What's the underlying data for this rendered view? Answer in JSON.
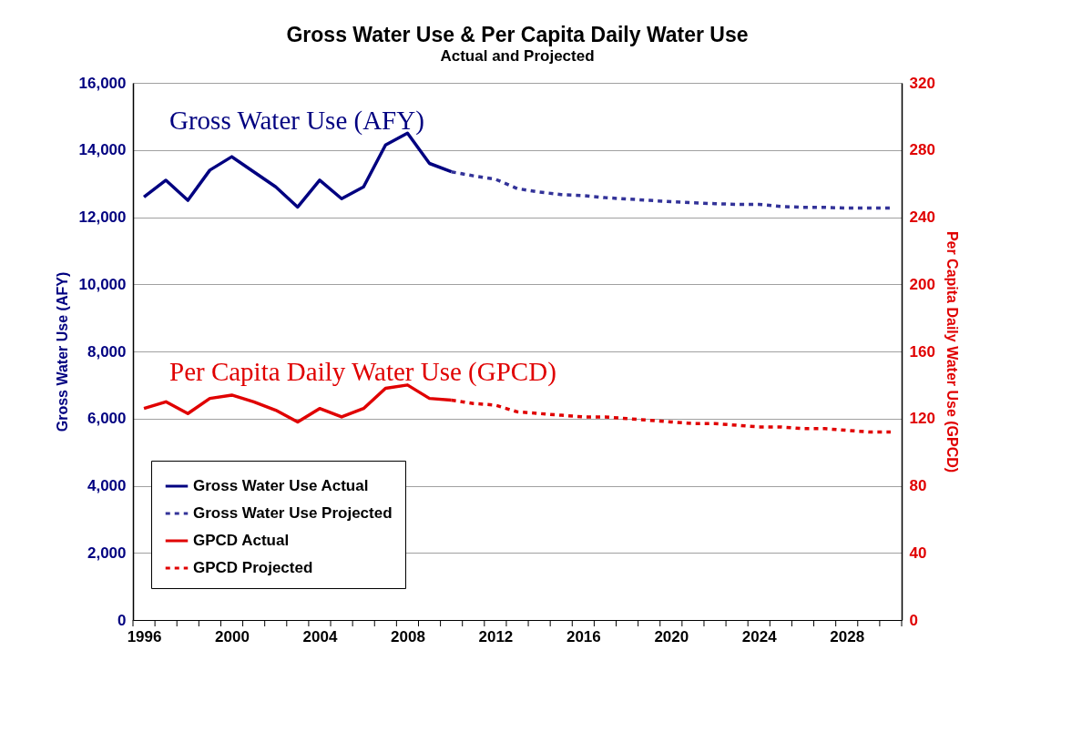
{
  "chart_data": {
    "type": "line",
    "title": "Gross Water Use & Per Capita Daily Water Use",
    "subtitle": "Actual and Projected",
    "ylabel": "Gross Water Use (AFY)",
    "y2label": "Per Capita Daily Water Use (GPCD)",
    "annotations": [
      "Gross Water Use (AFY)",
      "Per Capita Daily Water Use (GPCD)"
    ],
    "xlim": [
      1995.5,
      2030.5
    ],
    "xticks": [
      1996,
      2000,
      2004,
      2008,
      2012,
      2016,
      2020,
      2024,
      2028,
      {
        "value": 1995.5,
        "label": null
      },
      {
        "value": 1996.5,
        "label": null
      },
      {
        "value": 1997.5,
        "label": null
      },
      {
        "value": 1998.5,
        "label": null
      },
      {
        "value": 1999.5,
        "label": null
      },
      {
        "value": 2000.5,
        "label": null
      },
      {
        "value": 2001.5,
        "label": null
      },
      {
        "value": 2002.5,
        "label": null
      },
      {
        "value": 2003.5,
        "label": null
      },
      {
        "value": 2004.5,
        "label": null
      },
      {
        "value": 2005.5,
        "label": null
      },
      {
        "value": 2006.5,
        "label": null
      },
      {
        "value": 2007.5,
        "label": null
      },
      {
        "value": 2008.5,
        "label": null
      },
      {
        "value": 2009.5,
        "label": null
      },
      {
        "value": 2010.5,
        "label": null
      },
      {
        "value": 2011.5,
        "label": null
      },
      {
        "value": 2012.5,
        "label": null
      },
      {
        "value": 2013.5,
        "label": null
      },
      {
        "value": 2014.5,
        "label": null
      },
      {
        "value": 2015.5,
        "label": null
      },
      {
        "value": 2016.5,
        "label": null
      },
      {
        "value": 2017.5,
        "label": null
      },
      {
        "value": 2018.5,
        "label": null
      },
      {
        "value": 2019.5,
        "label": null
      },
      {
        "value": 2020.5,
        "label": null
      },
      {
        "value": 2021.5,
        "label": null
      },
      {
        "value": 2022.5,
        "label": null
      },
      {
        "value": 2023.5,
        "label": null
      },
      {
        "value": 2024.5,
        "label": null
      },
      {
        "value": 2025.5,
        "label": null
      },
      {
        "value": 2026.5,
        "label": null
      },
      {
        "value": 2027.5,
        "label": null
      },
      {
        "value": 2028.5,
        "label": null
      },
      {
        "value": 2029.5,
        "label": null
      },
      {
        "value": 2030.5,
        "label": null
      }
    ],
    "ylim": [
      0,
      16000
    ],
    "yticks": [
      0,
      {
        "value": 2000,
        "label": "2,000"
      },
      {
        "value": 4000,
        "label": "4,000"
      },
      {
        "value": 6000,
        "label": "6,000"
      },
      {
        "value": 8000,
        "label": "8,000"
      },
      {
        "value": 10000,
        "label": "10,000"
      },
      {
        "value": 12000,
        "label": "12,000"
      },
      {
        "value": 14000,
        "label": "14,000"
      },
      {
        "value": 16000,
        "label": "16,000"
      }
    ],
    "y2lim": [
      0,
      320
    ],
    "y2ticks": [
      0,
      40,
      80,
      120,
      160,
      200,
      240,
      280,
      320
    ],
    "grid": "y",
    "legend": "bottom left",
    "marker": "none",
    "series": [
      {
        "name": "Gross Water Use Actual",
        "color": "#000080",
        "line_style": "solid",
        "x": [
          1996,
          1997,
          1998,
          1999,
          2000,
          2001,
          2002,
          2003,
          2004,
          2005,
          2006,
          2007,
          2008,
          2009,
          2010
        ],
        "values": [
          12600,
          13100,
          12500,
          13400,
          13800,
          13350,
          12900,
          12300,
          13100,
          12550,
          12900,
          14150,
          14500,
          13600,
          13350
        ]
      },
      {
        "name": "Gross Water Use Projected",
        "color": "#333399",
        "line_style": "dashed",
        "x": [
          2010,
          2011,
          2012,
          2013,
          2014,
          2015,
          2016,
          2017,
          2018,
          2019,
          2020,
          2021,
          2022,
          2023,
          2024,
          2025,
          2026,
          2027,
          2028,
          2029,
          2030
        ],
        "values": [
          13350,
          13230,
          13130,
          12850,
          12750,
          12670,
          12640,
          12580,
          12540,
          12500,
          12460,
          12430,
          12400,
          12380,
          12380,
          12320,
          12290,
          12290,
          12270,
          12270,
          12270
        ]
      },
      {
        "name": "GPCD Actual",
        "color": "#e00000",
        "line_style": "solid",
        "axis": "y2",
        "x": [
          1996,
          1997,
          1998,
          1999,
          2000,
          2001,
          2002,
          2003,
          2004,
          2005,
          2006,
          2007,
          2008,
          2009,
          2010
        ],
        "values": [
          126,
          130,
          123,
          132,
          134,
          130,
          125,
          118,
          126,
          121,
          126,
          138,
          140,
          132,
          131
        ]
      },
      {
        "name": "GPCD Projected",
        "color": "#e00000",
        "line_style": "dashed",
        "axis": "y2",
        "x": [
          2010,
          2011,
          2012,
          2013,
          2014,
          2015,
          2016,
          2017,
          2018,
          2019,
          2020,
          2021,
          2022,
          2023,
          2024,
          2025,
          2026,
          2027,
          2028,
          2029,
          2030
        ],
        "values": [
          131,
          129,
          128,
          124,
          123,
          122,
          121,
          121,
          120,
          119,
          118,
          117,
          117,
          116,
          115,
          115,
          114,
          114,
          113,
          112,
          112
        ]
      }
    ]
  }
}
